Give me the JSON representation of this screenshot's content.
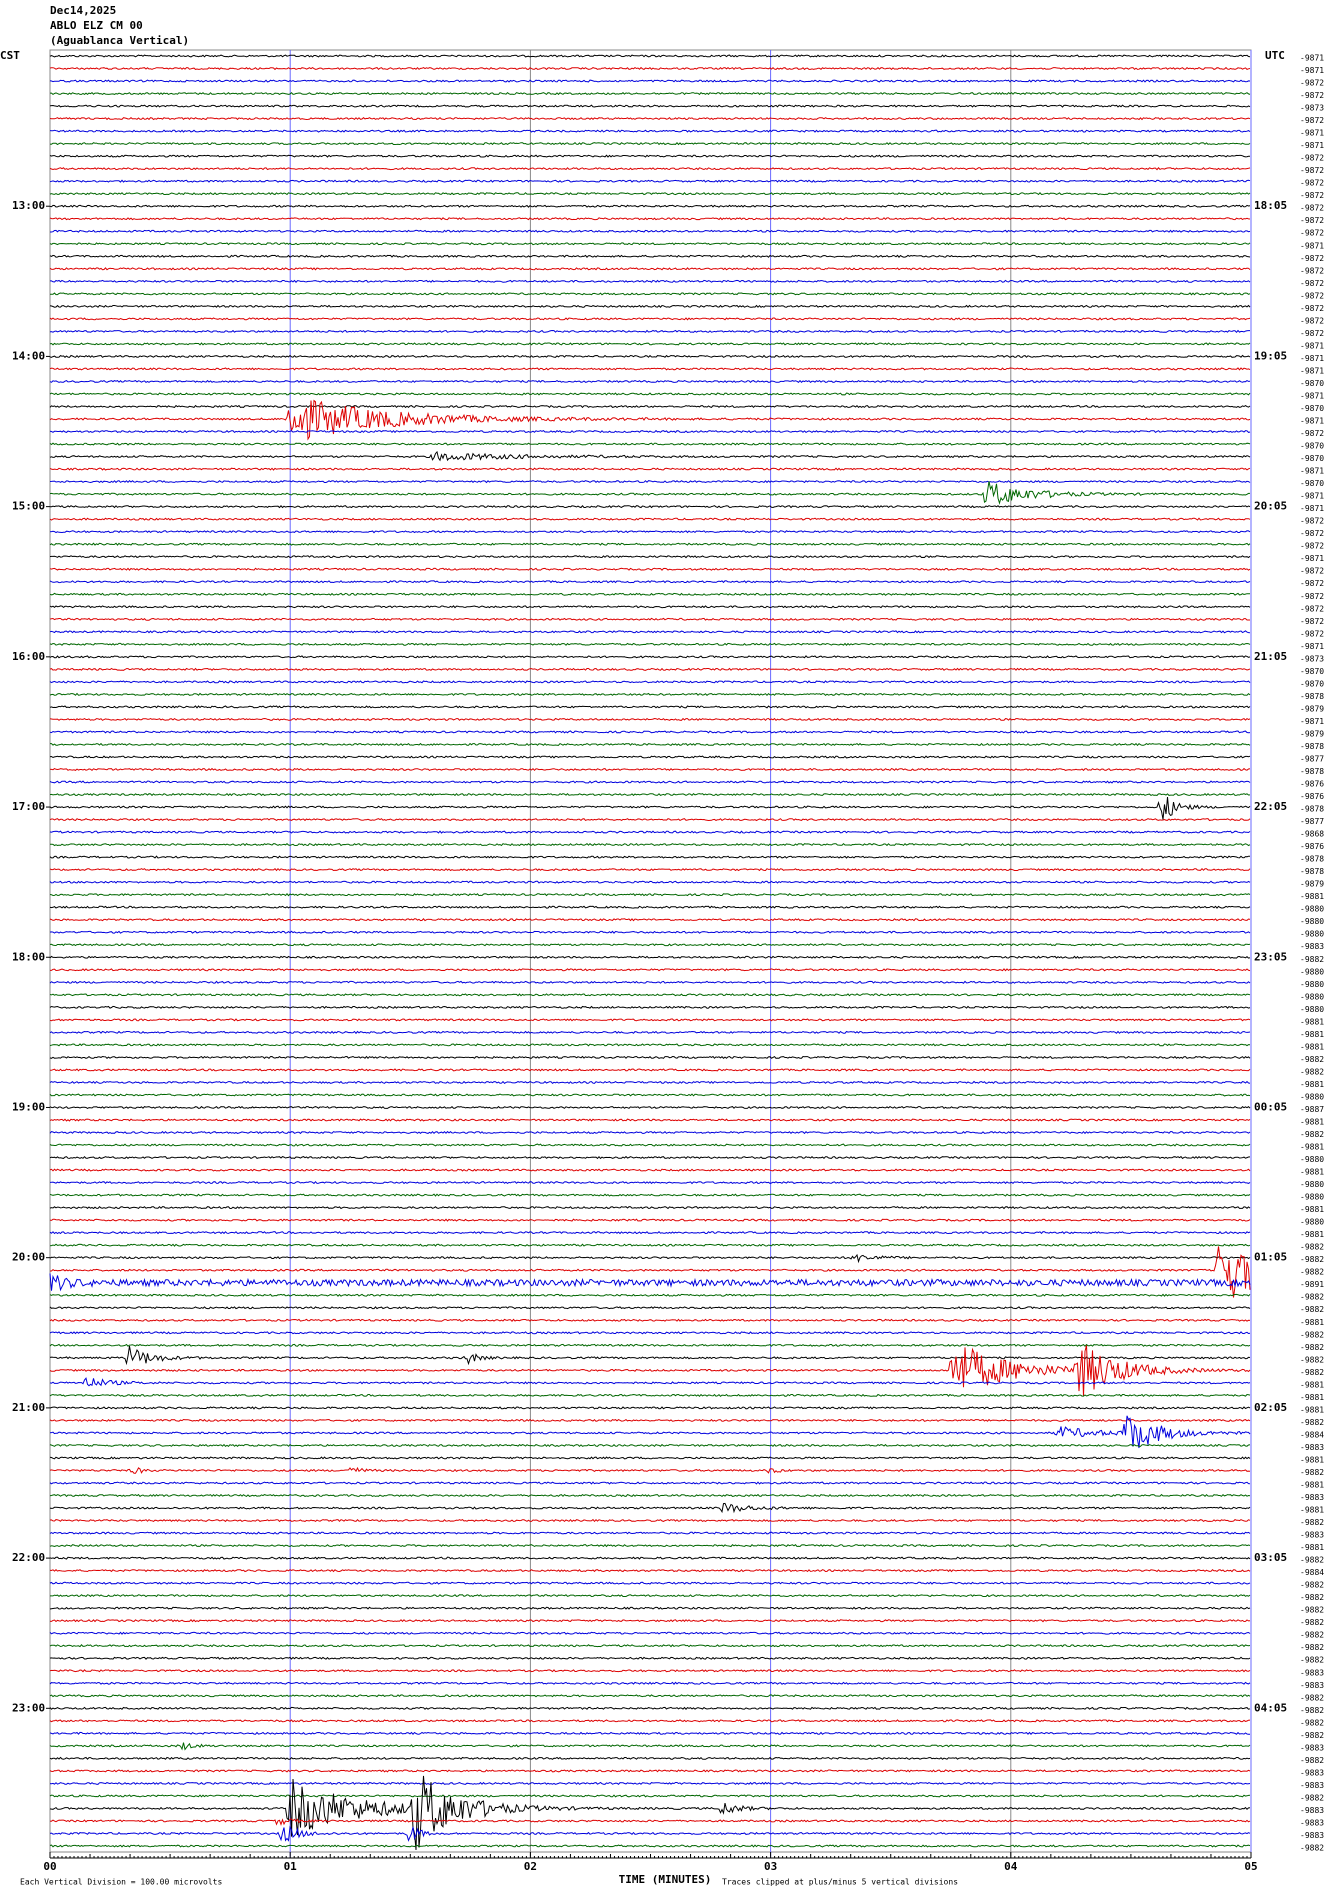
{
  "header": {
    "date": "Dec14,2025",
    "station": "ABLO ELZ CM 00",
    "site": "(Aguablanca Vertical)",
    "left_zone": "CST",
    "right_zone": "UTC"
  },
  "left_hour_labels": [
    "13:00",
    "14:00",
    "15:00",
    "16:00",
    "17:00",
    "18:00",
    "19:00",
    "20:00",
    "21:00",
    "22:00",
    "23:00"
  ],
  "right_hour_labels": [
    "18:05",
    "19:05",
    "20:05",
    "21:05",
    "22:05",
    "23:05",
    "00:05",
    "01:05",
    "02:05",
    "03:05",
    "04:05"
  ],
  "trace_labels": [
    "-9871",
    "-9871",
    "-9872",
    "-9872",
    "-9873",
    "-9872",
    "-9871",
    "-9871",
    "-9872",
    "-9872",
    "-9872",
    "-9872",
    "-9872",
    "-9872",
    "-9872",
    "-9871",
    "-9872",
    "-9872",
    "-9872",
    "-9872",
    "-9872",
    "-9872",
    "-9872",
    "-9871",
    "-9871",
    "-9871",
    "-9870",
    "-9871",
    "-9870",
    "-9871",
    "-9872",
    "-9870",
    "-9870",
    "-9871",
    "-9870",
    "-9871",
    "-9871",
    "-9872",
    "-9872",
    "-9872",
    "-9871",
    "-9872",
    "-9872",
    "-9872",
    "-9872",
    "-9872",
    "-9872",
    "-9871",
    "-9873",
    "-9870",
    "-9870",
    "-9878",
    "-9879",
    "-9871",
    "-9879",
    "-9878",
    "-9877",
    "-9878",
    "-9876",
    "-9876",
    "-9878",
    "-9877",
    "-9868",
    "-9876",
    "-9878",
    "-9878",
    "-9879",
    "-9881",
    "-9880",
    "-9880",
    "-9880",
    "-9883",
    "-9882",
    "-9880",
    "-9880",
    "-9880",
    "-9880",
    "-9881",
    "-9881",
    "-9881",
    "-9882",
    "-9882",
    "-9881",
    "-9880",
    "-9887",
    "-9881",
    "-9882",
    "-9881",
    "-9880",
    "-9881",
    "-9880",
    "-9880",
    "-9881",
    "-9880",
    "-9881",
    "-9882",
    "-9882",
    "-9882",
    "-9891",
    "-9882",
    "-9882",
    "-9881",
    "-9882",
    "-9882",
    "-9882",
    "-9882",
    "-9881",
    "-9881",
    "-9881",
    "-9882",
    "-9884",
    "-9883",
    "-9881",
    "-9882",
    "-9881",
    "-9883",
    "-9881",
    "-9882",
    "-9883",
    "-9881",
    "-9882",
    "-9884",
    "-9882",
    "-9882",
    "-9882",
    "-9882",
    "-9882",
    "-9882",
    "-9882",
    "-9883",
    "-9883",
    "-9882",
    "-9882",
    "-9882",
    "-9882",
    "-9883",
    "-9882",
    "-9883",
    "-9883",
    "-9882",
    "-9883",
    "-9883",
    "-9883",
    "-9882"
  ],
  "x_axis": {
    "ticks": [
      "00",
      "01",
      "02",
      "03",
      "04",
      "05"
    ],
    "title": "TIME (MINUTES)"
  },
  "footer": {
    "scale_note": "Each Vertical Division =  100.00 microvolts",
    "clip_note": "Traces clipped at plus/minus 5 vertical divisions"
  }
}
